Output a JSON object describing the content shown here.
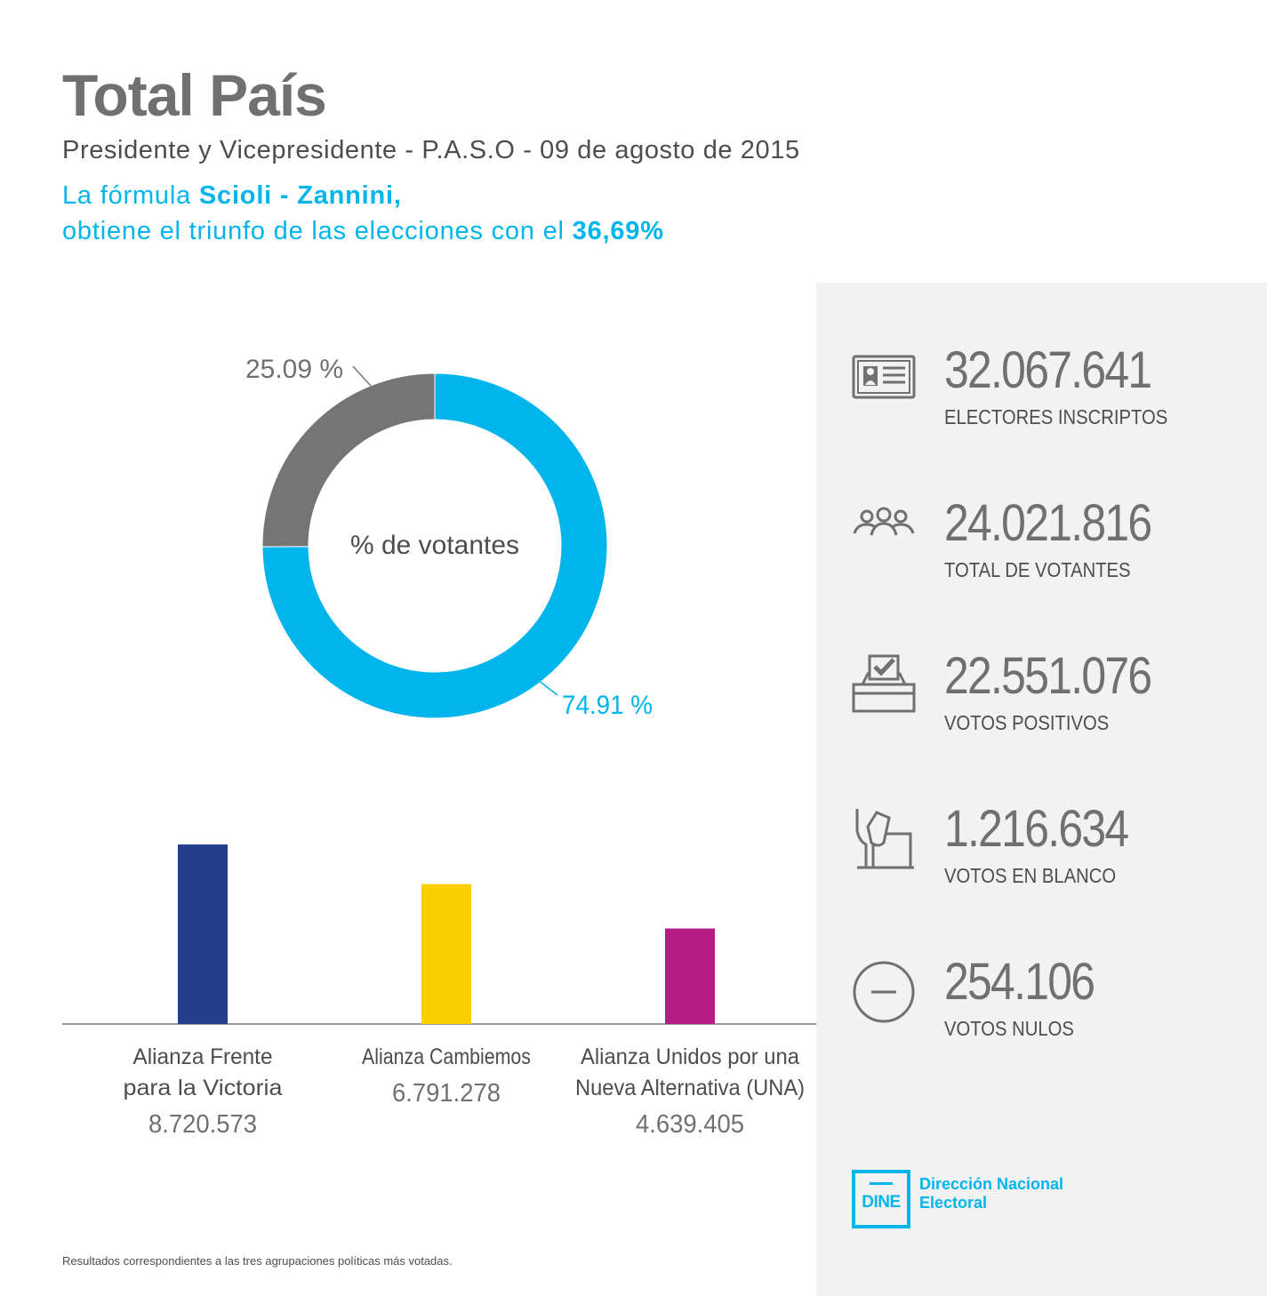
{
  "header": {
    "title": "Total País",
    "subtitle": "Presidente y Vicepresidente - P.A.S.O - 09 de agosto de 2015",
    "headline": {
      "line1_prefix": "La fórmula ",
      "line1_bold": "Scioli - Zannini,",
      "line2_prefix": "obtiene el triunfo de las elecciones con el ",
      "line2_bold": "36,69%"
    }
  },
  "chart_data": [
    {
      "type": "pie",
      "variant": "donut",
      "center_label": "% de votantes",
      "slices": [
        {
          "label": "74.91 %",
          "value": 74.91,
          "color": "#00b4ec"
        },
        {
          "label": "25.09 %",
          "value": 25.09,
          "color": "#757575"
        }
      ]
    },
    {
      "type": "bar",
      "categories": [
        [
          "Alianza Frente",
          "para la Victoria"
        ],
        [
          "Alianza Cambiemos"
        ],
        [
          "Alianza Unidos por una",
          "Nueva Alternativa (UNA)"
        ]
      ],
      "values": [
        8720573,
        6791278,
        4639405
      ],
      "value_labels": [
        "8.720.573",
        "6.791.278",
        "4.639.405"
      ],
      "colors": [
        "#253e8e",
        "#fecf00",
        "#b41d83"
      ]
    }
  ],
  "stats": [
    {
      "icon": "id-card-icon",
      "value": "32.067.641",
      "label": "ELECTORES INSCRIPTOS"
    },
    {
      "icon": "people-icon",
      "value": "24.021.816",
      "label": "TOTAL DE VOTANTES"
    },
    {
      "icon": "ballot-box-check-icon",
      "value": "22.551.076",
      "label": "VOTOS POSITIVOS"
    },
    {
      "icon": "hand-ballot-icon",
      "value": "1.216.634",
      "label": "VOTOS EN BLANCO"
    },
    {
      "icon": "minus-circle-icon",
      "value": "254.106",
      "label": "VOTOS NULOS"
    }
  ],
  "logo": {
    "abbr": "DINE",
    "name_line1": "Dirección Nacional",
    "name_line2": "Electoral",
    "color": "#00b4ec"
  },
  "footnote": "Resultados correspondientes a las tres agrupaciones políticas más votadas."
}
